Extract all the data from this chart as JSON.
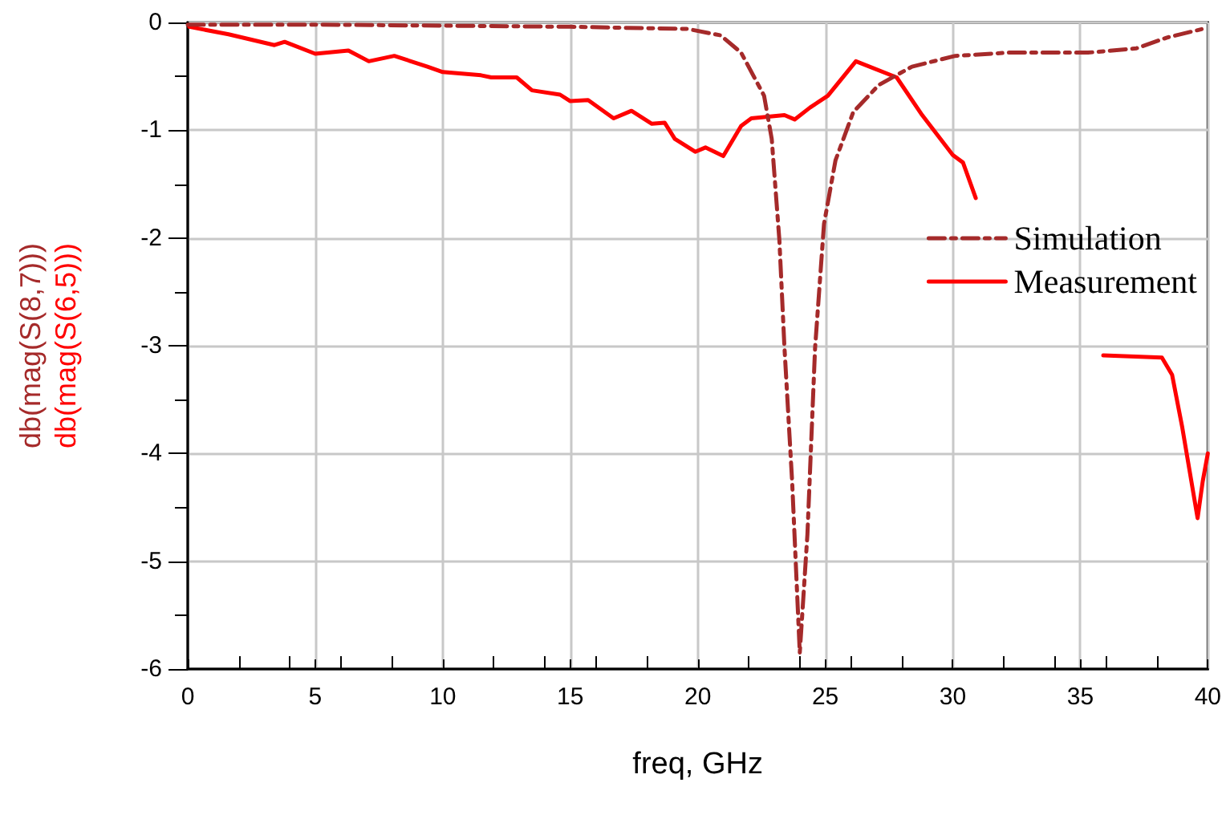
{
  "chart_data": {
    "type": "line",
    "xlabel": "freq, GHz",
    "ylabel": "db(mag(S(8,7)))\ndb(mag(S(6,5)))",
    "xlim": [
      0,
      40
    ],
    "xticks": [
      0,
      5,
      10,
      15,
      20,
      25,
      30,
      35,
      40
    ],
    "ylim": [
      -6,
      0
    ],
    "yticks": [
      -6,
      -5,
      -4,
      -3,
      -2,
      -1,
      0
    ],
    "grid": true,
    "legend": "right",
    "marker": "none",
    "series": [
      {
        "name": "Simulation",
        "color": "#a52a2a",
        "line_style": "dashed",
        "x": [
          0,
          5,
          10,
          15,
          19.6,
          20.9,
          21.7,
          22.6,
          22.9,
          23.2,
          23.4,
          23.7,
          24.0,
          24.3,
          24.6,
          24.95,
          25.4,
          26.1,
          27.1,
          28.4,
          30.1,
          32.2,
          35.3,
          37.2,
          38.4,
          39.8,
          40
        ],
        "values": [
          -0.02,
          -0.02,
          -0.03,
          -0.04,
          -0.06,
          -0.12,
          -0.28,
          -0.68,
          -1.08,
          -2.02,
          -3.02,
          -4.26,
          -5.85,
          -4.75,
          -3.02,
          -1.87,
          -1.28,
          -0.83,
          -0.58,
          -0.41,
          -0.31,
          -0.28,
          -0.28,
          -0.24,
          -0.14,
          -0.06,
          -0.05
        ]
      },
      {
        "name": "Measurement",
        "color": "#ff0000",
        "line_style": "solid",
        "x": [
          0.06,
          1.6,
          3.4,
          3.8,
          5.0,
          6.3,
          7.1,
          8.1,
          9.4,
          10.0,
          11.5,
          11.9,
          12.9,
          13.5,
          14.6,
          15.0,
          15.7,
          16.7,
          17.4,
          18.2,
          18.7,
          19.1,
          19.9,
          20.3,
          21.0,
          21.7,
          22.1,
          23.4,
          23.8,
          24.4,
          25.1,
          26.2,
          27.8,
          28.8,
          30.0,
          30.4,
          30.9,
          33,
          35.9,
          38.2,
          38.6,
          39.0,
          39.6,
          39.8,
          40
        ],
        "values": [
          -0.04,
          -0.11,
          -0.21,
          -0.18,
          -0.29,
          -0.26,
          -0.36,
          -0.31,
          -0.41,
          -0.46,
          -0.49,
          -0.51,
          -0.51,
          -0.63,
          -0.67,
          -0.73,
          -0.72,
          -0.89,
          -0.82,
          -0.94,
          -0.93,
          -1.08,
          -1.2,
          -1.16,
          -1.24,
          -0.96,
          -0.89,
          -0.86,
          -0.9,
          -0.79,
          -0.68,
          -0.36,
          -0.51,
          -0.86,
          -1.23,
          -1.3,
          -1.63,
          null,
          -3.09,
          -3.11,
          -3.27,
          -3.76,
          -4.6,
          -4.26,
          -4.0
        ]
      }
    ]
  }
}
